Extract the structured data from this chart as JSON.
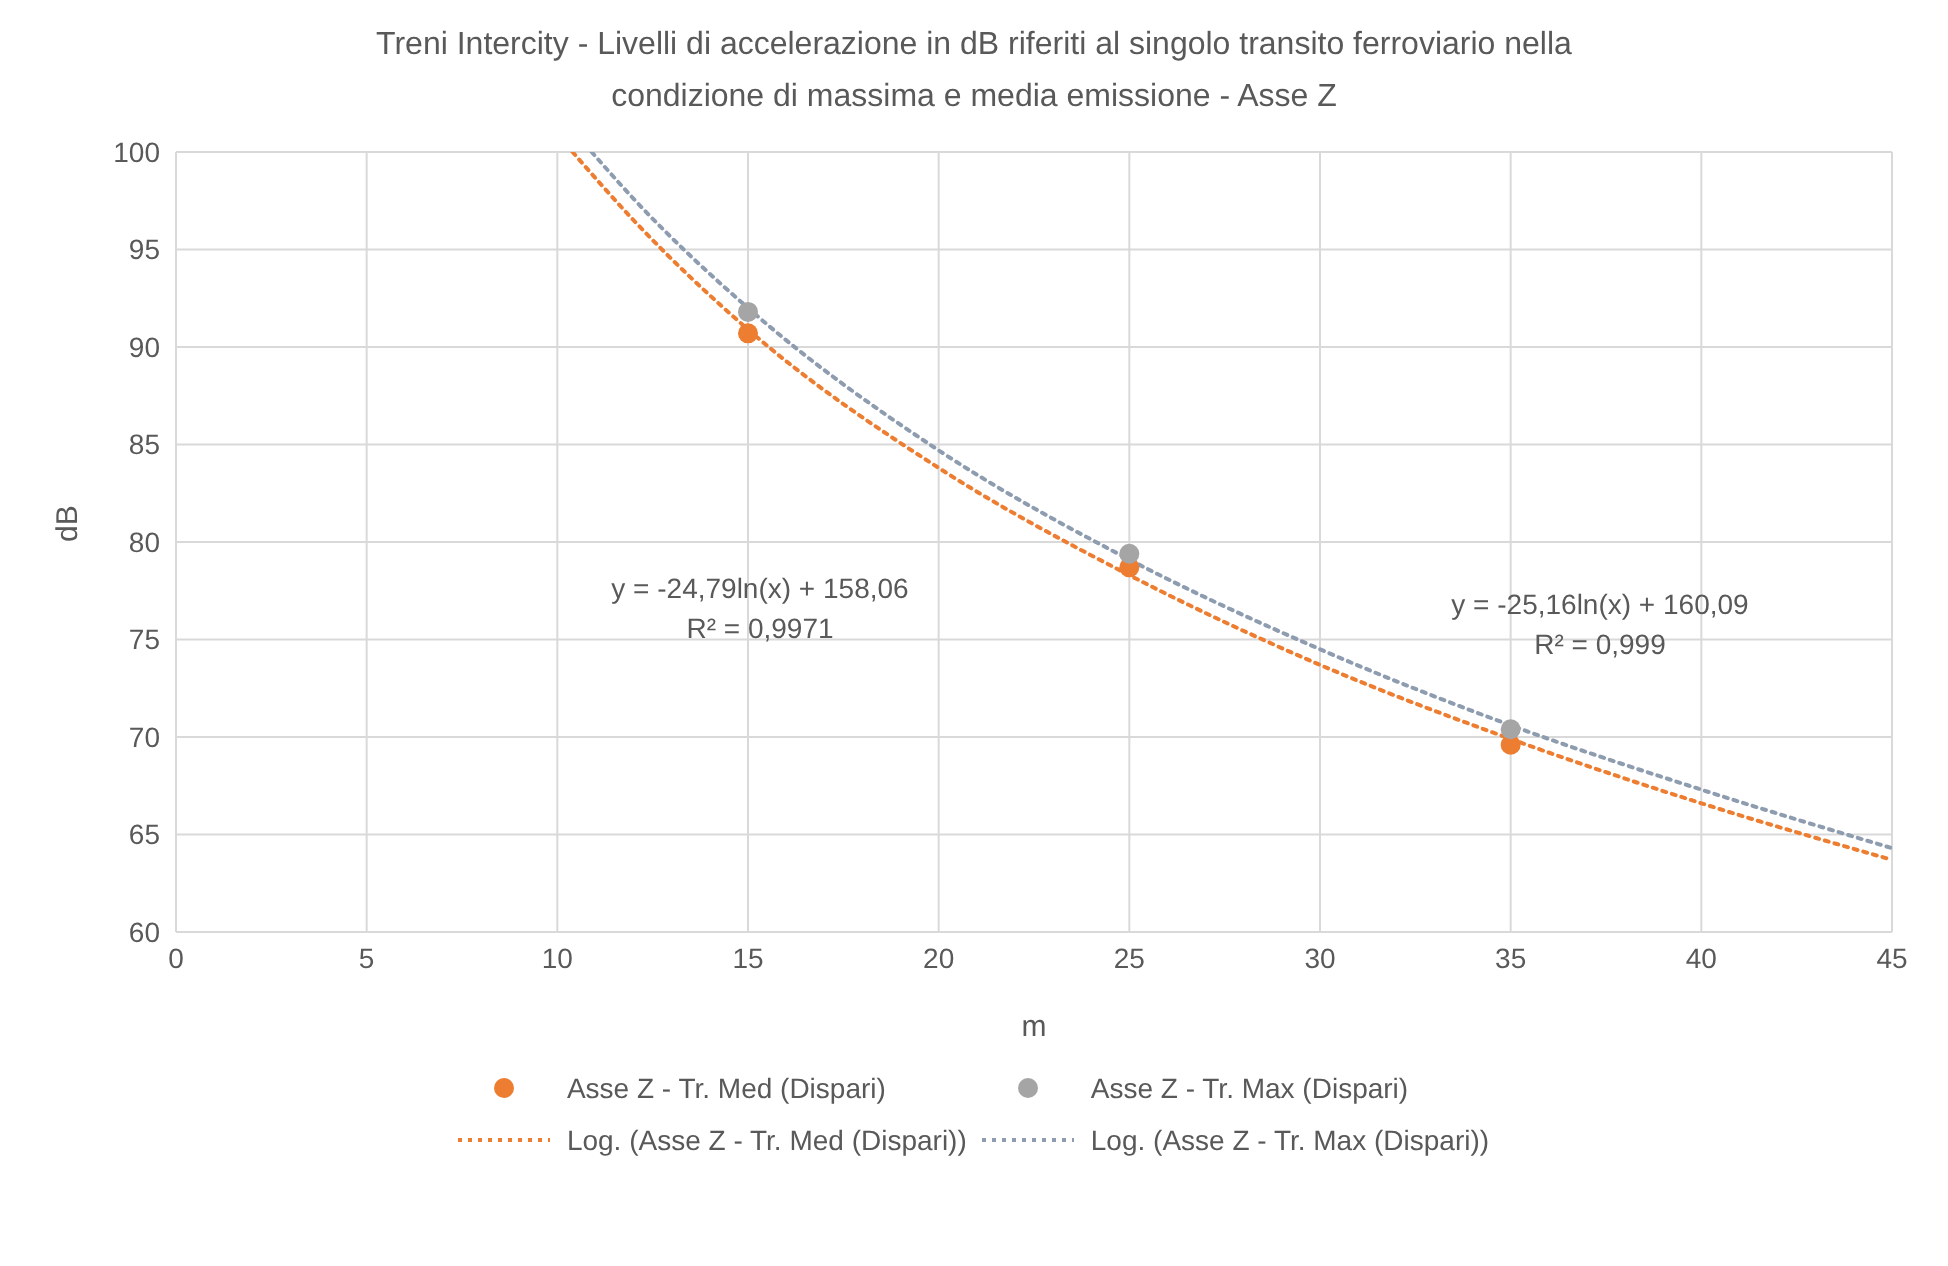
{
  "chart_data": {
    "type": "scatter",
    "title": "Treni Intercity - Livelli di accelerazione in dB riferiti al singolo transito ferroviario nella condizione di massima e media emissione - Asse Z",
    "xlabel": "m",
    "ylabel": "dB",
    "xlim": [
      0,
      45
    ],
    "xticks": [
      0,
      5,
      10,
      15,
      20,
      25,
      30,
      35,
      40,
      45
    ],
    "ylim": [
      60,
      100
    ],
    "yticks": [
      60,
      65,
      70,
      75,
      80,
      85,
      90,
      95,
      100
    ],
    "grid": true,
    "legend": "bottom",
    "marker": "circle",
    "series": [
      {
        "name": "Asse Z - Tr. Med (Dispari)",
        "color": "#ed7d31",
        "x": [
          15,
          25,
          35
        ],
        "values": [
          90.7,
          78.7,
          69.6
        ]
      },
      {
        "name": "Asse Z - Tr. Max (Dispari)",
        "color": "#a5a5a5",
        "x": [
          15,
          25,
          35
        ],
        "values": [
          91.8,
          79.4,
          70.4
        ]
      },
      {
        "name": "Log. (Asse Z - Tr. Med (Dispari))",
        "type": "line",
        "line_style": "dotted",
        "marker": "none",
        "color": "#ed7d31",
        "x": [
          10.4,
          12,
          15,
          20,
          25,
          30,
          35,
          40,
          45
        ],
        "values": [
          100,
          96.5,
          90.9,
          83.8,
          78.3,
          73.7,
          69.9,
          66.6,
          63.7
        ]
      },
      {
        "name": "Log. (Asse Z - Tr. Max (Dispari))",
        "type": "line",
        "line_style": "dotted",
        "marker": "none",
        "color": "#8e9cb0",
        "x": [
          10.9,
          12,
          15,
          20,
          25,
          30,
          35,
          40,
          45
        ],
        "values": [
          100,
          97.6,
          92.0,
          84.7,
          79.1,
          74.5,
          70.6,
          67.3,
          64.3
        ]
      }
    ],
    "annotations": [
      "y = -24,79ln(x) + 158,06",
      "R² = 0,9971",
      "y = -25,16ln(x) + 160,09",
      "R² = 0,999"
    ]
  }
}
